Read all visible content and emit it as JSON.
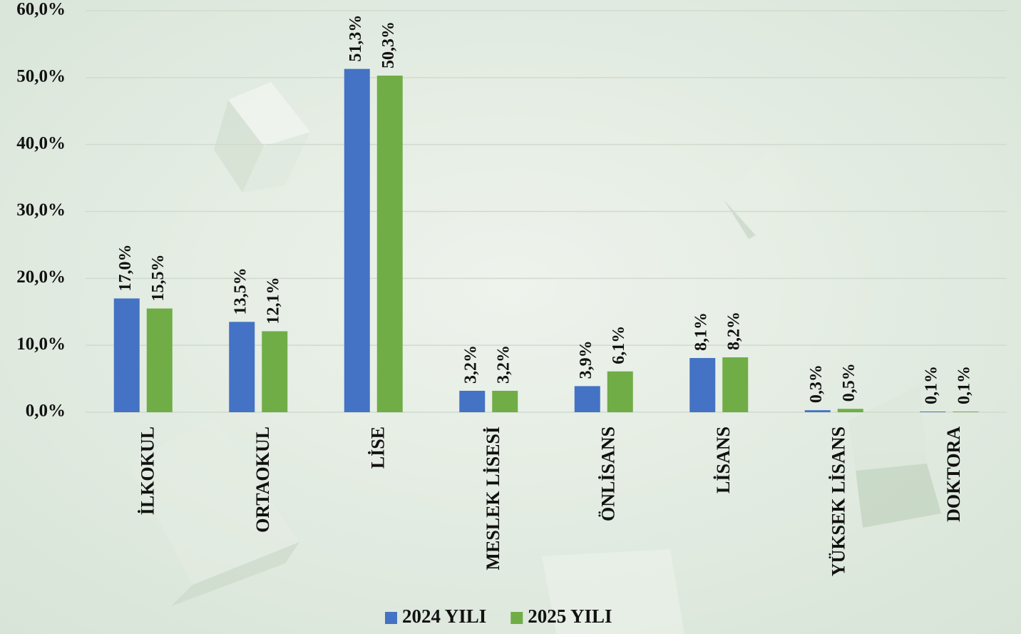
{
  "chart_data": {
    "type": "bar",
    "categories": [
      "İLKOKUL",
      "ORTAOKUL",
      "LİSE",
      "MESLEK LİSESİ",
      "ÖNLİSANS",
      "LİSANS",
      "YÜKSEK LİSANS",
      "DOKTORA"
    ],
    "series": [
      {
        "name": "2024 YILI",
        "color": "#4472c4",
        "values": [
          17.0,
          13.5,
          51.3,
          3.2,
          3.9,
          8.1,
          0.3,
          0.1
        ],
        "value_labels": [
          "17,0%",
          "13,5%",
          "51,3%",
          "3,2%",
          "3,9%",
          "8,1%",
          "0,3%",
          "0,1%"
        ]
      },
      {
        "name": "2025 YILI",
        "color": "#70ad47",
        "values": [
          15.5,
          12.1,
          50.3,
          3.2,
          6.1,
          8.2,
          0.5,
          0.1
        ],
        "value_labels": [
          "15,5%",
          "12,1%",
          "50,3%",
          "3,2%",
          "6,1%",
          "8,2%",
          "0,5%",
          "0,1%"
        ]
      }
    ],
    "ylim": [
      0,
      60
    ],
    "yticks": [
      {
        "value": 0,
        "label": "0,0%"
      },
      {
        "value": 10,
        "label": "10,0%"
      },
      {
        "value": 20,
        "label": "20,0%"
      },
      {
        "value": 30,
        "label": "30,0%"
      },
      {
        "value": 40,
        "label": "40,0%"
      },
      {
        "value": 50,
        "label": "50,0%"
      },
      {
        "value": 60,
        "label": "60,0%"
      }
    ],
    "grid": true,
    "legend": "bottom"
  }
}
